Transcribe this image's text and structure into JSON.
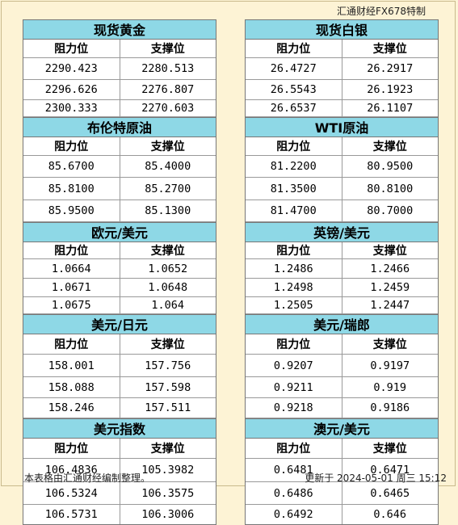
{
  "brand": "汇通财经FX678特制",
  "headers": {
    "resistance": "阻力位",
    "support": "支撑位"
  },
  "left": [
    {
      "title": "现货黄金",
      "rows": [
        [
          "2290.423",
          "2280.513"
        ],
        [
          "2296.626",
          "2276.807"
        ],
        [
          "2300.333",
          "2270.603"
        ]
      ]
    },
    {
      "title": "布伦特原油",
      "rows": [
        [
          "85.6700",
          "85.4000"
        ],
        [
          "85.8100",
          "85.2700"
        ],
        [
          "85.9500",
          "85.1300"
        ]
      ]
    },
    {
      "title": "欧元/美元",
      "rows": [
        [
          "1.0664",
          "1.0652"
        ],
        [
          "1.0671",
          "1.0648"
        ],
        [
          "1.0675",
          "1.064"
        ]
      ]
    },
    {
      "title": "美元/日元",
      "rows": [
        [
          "158.001",
          "157.756"
        ],
        [
          "158.088",
          "157.598"
        ],
        [
          "158.246",
          "157.511"
        ]
      ]
    },
    {
      "title": "美元指数",
      "rows": [
        [
          "106.4836",
          "105.3982"
        ],
        [
          "106.5324",
          "106.3575"
        ],
        [
          "106.5731",
          "106.3006"
        ]
      ]
    }
  ],
  "right": [
    {
      "title": "现货白银",
      "rows": [
        [
          "26.4727",
          "26.2917"
        ],
        [
          "26.5543",
          "26.1923"
        ],
        [
          "26.6537",
          "26.1107"
        ]
      ]
    },
    {
      "title": "WTI原油",
      "rows": [
        [
          "81.2200",
          "80.9500"
        ],
        [
          "81.3500",
          "80.8100"
        ],
        [
          "81.4700",
          "80.7000"
        ]
      ]
    },
    {
      "title": "英镑/美元",
      "rows": [
        [
          "1.2486",
          "1.2466"
        ],
        [
          "1.2498",
          "1.2459"
        ],
        [
          "1.2505",
          "1.2447"
        ]
      ]
    },
    {
      "title": "美元/瑞郎",
      "rows": [
        [
          "0.9207",
          "0.9197"
        ],
        [
          "0.9211",
          "0.919"
        ],
        [
          "0.9218",
          "0.9186"
        ]
      ]
    },
    {
      "title": "澳元/美元",
      "rows": [
        [
          "0.6481",
          "0.6471"
        ],
        [
          "0.6486",
          "0.6465"
        ],
        [
          "0.6492",
          "0.646"
        ]
      ]
    }
  ],
  "footer": {
    "note": "本表格由汇通财经编制整理。",
    "updated": "更新于 2024-05-01 周三 15:12"
  }
}
